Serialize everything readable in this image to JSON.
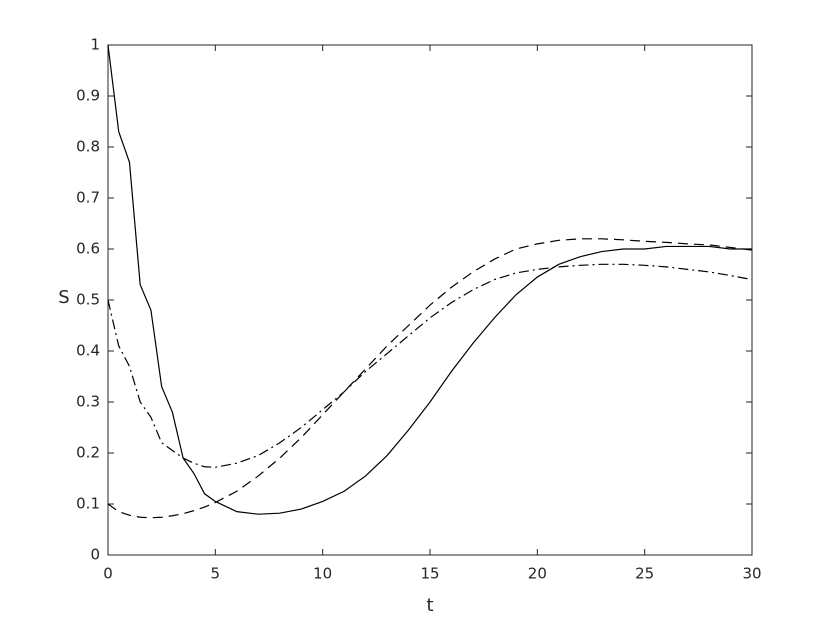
{
  "chart_data": {
    "type": "line",
    "xlabel": "t",
    "ylabel": "S",
    "x": [
      0,
      0.5,
      1,
      1.5,
      2,
      2.5,
      3,
      3.5,
      4,
      4.5,
      5,
      6,
      7,
      8,
      9,
      10,
      11,
      12,
      13,
      14,
      15,
      16,
      17,
      18,
      19,
      20,
      21,
      22,
      23,
      24,
      25,
      26,
      27,
      28,
      29,
      30
    ],
    "series": [
      {
        "color": "#000000",
        "dash": "solid",
        "values": [
          1,
          0.83,
          0.77,
          0.53,
          0.48,
          0.33,
          0.28,
          0.19,
          0.16,
          0.12,
          0.105,
          0.085,
          0.08,
          0.082,
          0.09,
          0.105,
          0.125,
          0.155,
          0.195,
          0.245,
          0.3,
          0.36,
          0.415,
          0.465,
          0.51,
          0.545,
          0.57,
          0.585,
          0.595,
          0.6,
          0.6,
          0.605,
          0.605,
          0.605,
          0.6,
          0.6
        ]
      },
      {
        "color": "#000000",
        "dash": "dashed",
        "values": [
          0.1,
          0.085,
          0.078,
          0.074,
          0.073,
          0.074,
          0.077,
          0.081,
          0.087,
          0.094,
          0.103,
          0.125,
          0.155,
          0.19,
          0.23,
          0.275,
          0.32,
          0.365,
          0.41,
          0.45,
          0.49,
          0.525,
          0.555,
          0.58,
          0.6,
          0.61,
          0.617,
          0.62,
          0.62,
          0.618,
          0.615,
          0.613,
          0.61,
          0.608,
          0.603,
          0.598
        ]
      },
      {
        "color": "#000000",
        "dash": "dashdot",
        "values": [
          0.5,
          0.41,
          0.37,
          0.3,
          0.27,
          0.22,
          0.205,
          0.19,
          0.18,
          0.173,
          0.172,
          0.18,
          0.195,
          0.22,
          0.25,
          0.285,
          0.32,
          0.36,
          0.395,
          0.43,
          0.465,
          0.495,
          0.52,
          0.54,
          0.553,
          0.56,
          0.565,
          0.568,
          0.57,
          0.57,
          0.568,
          0.565,
          0.56,
          0.555,
          0.548,
          0.54
        ]
      }
    ],
    "xlim": [
      0,
      30
    ],
    "xticks": [
      0,
      5,
      10,
      15,
      20,
      25,
      30
    ],
    "ylim": [
      0,
      1
    ],
    "yticks": [
      0,
      0.1,
      0.2,
      0.3,
      0.4,
      0.5,
      0.6,
      0.7,
      0.8,
      0.9,
      1
    ],
    "grid": false
  }
}
